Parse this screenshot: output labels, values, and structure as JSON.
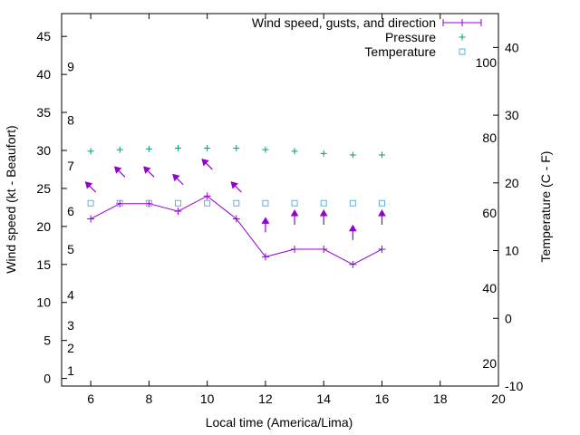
{
  "chart_data": {
    "type": "line",
    "title": "",
    "xlabel": "Local time (America/Lima)",
    "ylabel_left": "Wind speed (kt - Beaufort)",
    "ylabel_right": "Temperature (C - F)",
    "xlim": [
      5,
      20
    ],
    "x_ticks": [
      6,
      8,
      10,
      12,
      14,
      16,
      18,
      20
    ],
    "ylim_left": [
      -1,
      48
    ],
    "y_ticks_left": [
      0,
      5,
      10,
      15,
      20,
      25,
      30,
      35,
      40,
      45
    ],
    "beaufort_labels": [
      {
        "label": "1",
        "kt": 1
      },
      {
        "label": "2",
        "kt": 4
      },
      {
        "label": "3",
        "kt": 7
      },
      {
        "label": "4",
        "kt": 11
      },
      {
        "label": "5",
        "kt": 17
      },
      {
        "label": "6",
        "kt": 22
      },
      {
        "label": "7",
        "kt": 28
      },
      {
        "label": "8",
        "kt": 34
      },
      {
        "label": "9",
        "kt": 41
      }
    ],
    "ylim_right_c": [
      -10,
      45
    ],
    "y_ticks_right_c": [
      -10,
      0,
      10,
      20,
      30,
      40
    ],
    "fahrenheit_labels": [
      20,
      40,
      60,
      80,
      100
    ],
    "grid": false,
    "legend_position": "top-right",
    "series": [
      {
        "name": "Wind speed, gusts, and direction",
        "axis": "left",
        "color": "#9400d3",
        "marker": "plus-line",
        "x": [
          6,
          7,
          8,
          9,
          10,
          11,
          12,
          13,
          14,
          15,
          16
        ],
        "y": [
          21,
          23,
          23,
          22,
          24,
          21,
          16,
          17,
          17,
          15,
          17
        ],
        "direction_deg": [
          315,
          315,
          315,
          315,
          315,
          315,
          0,
          0,
          0,
          0,
          0
        ]
      },
      {
        "name": "Pressure",
        "axis": "left",
        "color": "#009e73",
        "marker": "plus",
        "x": [
          6,
          7,
          8,
          9,
          10,
          11,
          12,
          13,
          14,
          15,
          16
        ],
        "y": [
          29.9,
          30.1,
          30.2,
          30.3,
          30.3,
          30.3,
          30.1,
          29.9,
          29.6,
          29.4,
          29.4
        ]
      },
      {
        "name": "Temperature",
        "axis": "right",
        "color": "#56b4e9",
        "marker": "open-square",
        "x": [
          6,
          7,
          8,
          9,
          10,
          11,
          12,
          13,
          14,
          15,
          16
        ],
        "y": [
          17,
          17,
          17,
          17,
          17,
          17,
          17,
          17,
          17,
          17,
          17
        ]
      }
    ]
  }
}
